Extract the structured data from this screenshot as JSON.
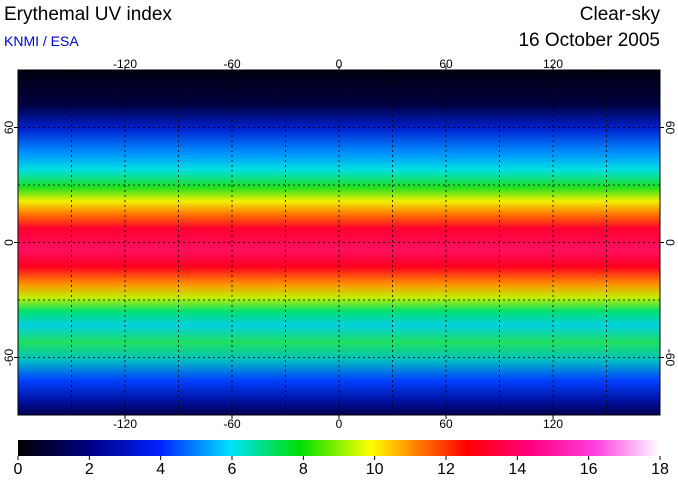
{
  "header": {
    "title": "Erythemal UV index",
    "source": "KNMI / ESA",
    "condition": "Clear-sky",
    "date": "16 October 2005"
  },
  "map": {
    "xlim": [
      -180,
      180
    ],
    "ylim": [
      -90,
      90
    ],
    "xticks": [
      -120,
      -60,
      0,
      60,
      120
    ],
    "yticks": [
      -60,
      0,
      60
    ],
    "xgrid": [
      -150,
      -120,
      -90,
      -60,
      -30,
      0,
      30,
      60,
      90,
      120,
      150
    ],
    "ygrid": [
      -60,
      -30,
      0,
      30,
      60
    ]
  },
  "colorbar": {
    "lim": [
      0,
      18
    ],
    "ticks": [
      0,
      2,
      4,
      6,
      8,
      10,
      12,
      14,
      16,
      18
    ]
  }
}
